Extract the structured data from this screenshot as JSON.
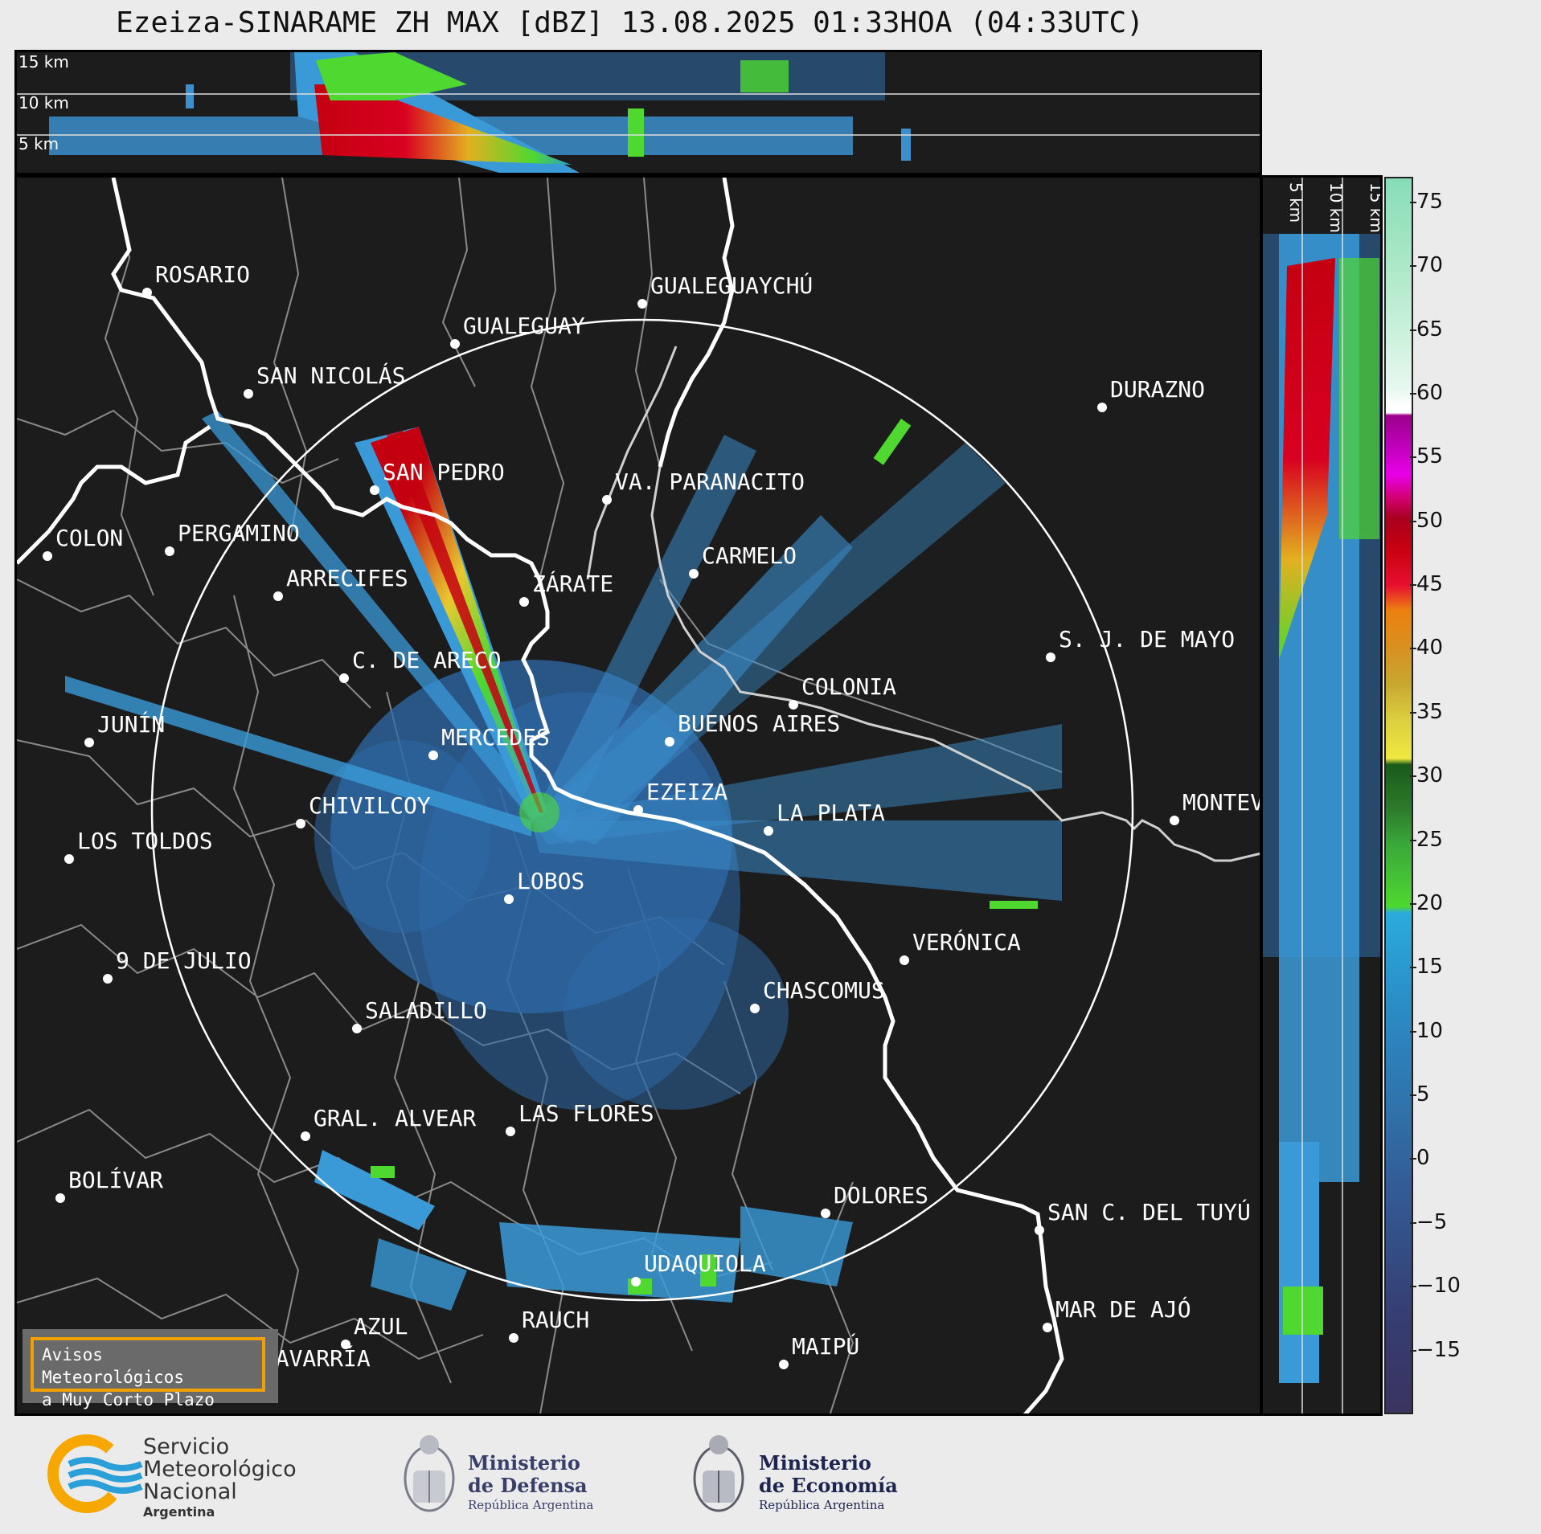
{
  "title": "Ezeiza-SINARAME ZH MAX [dBZ] 13.08.2025 01:33HOA (04:33UTC)",
  "top_profile": {
    "height_labels": [
      "15 km",
      "10 km",
      "5 km"
    ]
  },
  "side_profile": {
    "height_labels": [
      "5 km",
      "10 km",
      "15 km"
    ]
  },
  "colorbar": {
    "units": "dBZ",
    "ticks": [
      "75",
      "70",
      "65",
      "60",
      "55",
      "50",
      "45",
      "40",
      "35",
      "30",
      "25",
      "20",
      "15",
      "10",
      "5",
      "0",
      "−5",
      "−10",
      "−15"
    ],
    "range": [
      -20,
      77
    ]
  },
  "cities": [
    {
      "name": "ROSARIO"
    },
    {
      "name": "GUALEGUAYCHÚ"
    },
    {
      "name": "GUALEGUAY"
    },
    {
      "name": "SAN NICOLÁS"
    },
    {
      "name": "DURAZNO"
    },
    {
      "name": "SAN PEDRO"
    },
    {
      "name": "VA. PARANACITO"
    },
    {
      "name": "COLON"
    },
    {
      "name": "PERGAMINO"
    },
    {
      "name": "CARMELO"
    },
    {
      "name": "ARRECIFES"
    },
    {
      "name": "ZÁRATE"
    },
    {
      "name": "S. J. DE MAYO"
    },
    {
      "name": "C. DE ARECO"
    },
    {
      "name": "COLONIA"
    },
    {
      "name": "JUNÍN"
    },
    {
      "name": "BUENOS AIRES"
    },
    {
      "name": "MERCEDES"
    },
    {
      "name": "EZEIZA"
    },
    {
      "name": "MONTEVIDEO"
    },
    {
      "name": "CHIVILCOY"
    },
    {
      "name": "LA PLATA"
    },
    {
      "name": "LOS TOLDOS"
    },
    {
      "name": "LOBOS"
    },
    {
      "name": "VERÓNICA"
    },
    {
      "name": "9 DE JULIO"
    },
    {
      "name": "CHASCOMUS"
    },
    {
      "name": "SALADILLO"
    },
    {
      "name": "GRAL. ALVEAR"
    },
    {
      "name": "LAS FLORES"
    },
    {
      "name": "BOLÍVAR"
    },
    {
      "name": "DOLORES"
    },
    {
      "name": "SAN C. DEL TUYÚ"
    },
    {
      "name": "UDAQUIOLA"
    },
    {
      "name": "MAR DE AJÓ"
    },
    {
      "name": "RAUCH"
    },
    {
      "name": "AZUL"
    },
    {
      "name": "OLAVARRÍA"
    },
    {
      "name": "MAIPÚ"
    }
  ],
  "avisos": {
    "line1": "Avisos Meteorológicos",
    "line2": "a Muy Corto Plazo"
  },
  "logos": {
    "smn": {
      "line1": "Servicio",
      "line2": "Meteorológico",
      "line3": "Nacional",
      "line4": "Argentina"
    },
    "defensa": {
      "line1": "Ministerio",
      "line2": "de Defensa",
      "line3": "República Argentina"
    },
    "economia": {
      "line1": "Ministerio",
      "line2": "de Economía",
      "line3": "República Argentina"
    }
  },
  "colors": {
    "background_map": "#1c1c1c",
    "ring": "#ffffff",
    "coast": "#ffffff",
    "borders": "#8a8a8a",
    "avisos_border": "#f0a000"
  }
}
